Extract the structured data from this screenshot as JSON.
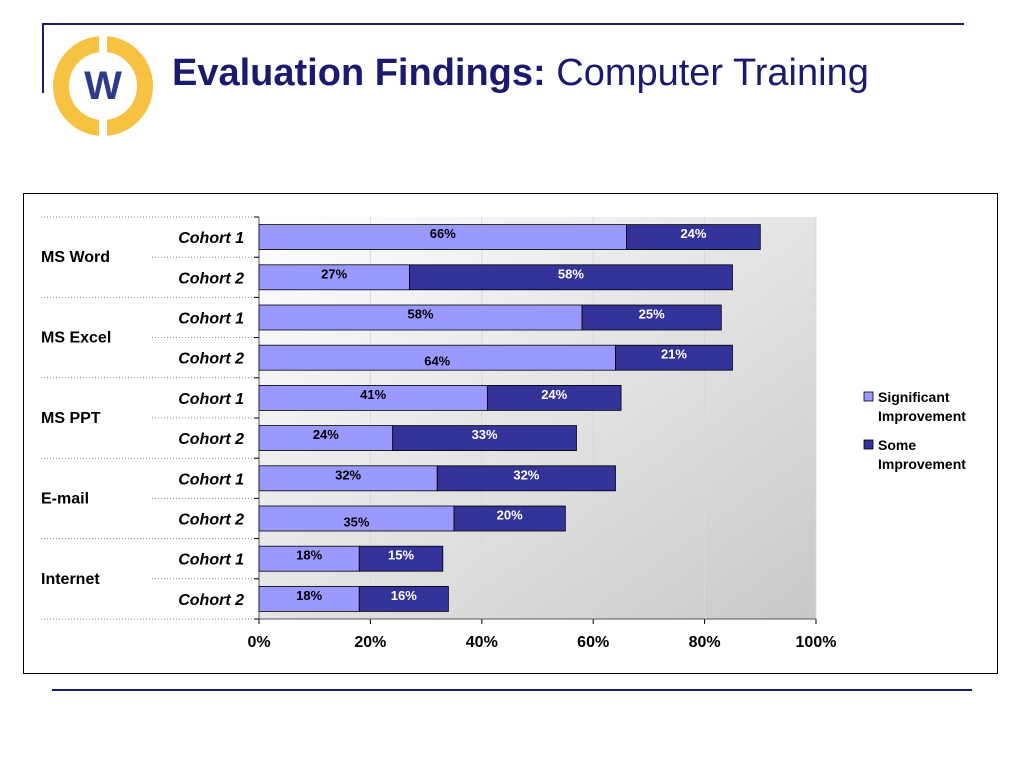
{
  "header": {
    "title_bold": "Evaluation Findings:",
    "title_rest": " Computer Training",
    "logo_letter": "W"
  },
  "colors": {
    "significant": "#9999ff",
    "some": "#333399",
    "title": "#1a1a6e",
    "logo_ring": "#f5c242",
    "logo_letter": "#2e3a8c"
  },
  "chart_data": {
    "type": "bar",
    "orientation": "horizontal",
    "stacked": true,
    "title": "",
    "xlabel": "",
    "ylabel": "",
    "xlim": [
      0,
      100
    ],
    "x_ticks": [
      "0%",
      "20%",
      "40%",
      "60%",
      "80%",
      "100%"
    ],
    "grid": true,
    "legend_position": "right",
    "groups": [
      {
        "label": "MS Word",
        "rows": [
          {
            "label": "Cohort 1",
            "significant": 66,
            "some": 24
          },
          {
            "label": "Cohort 2",
            "significant": 27,
            "some": 58
          }
        ]
      },
      {
        "label": "MS Excel",
        "rows": [
          {
            "label": "Cohort 1",
            "significant": 58,
            "some": 25
          },
          {
            "label": "Cohort 2",
            "significant": 64,
            "some": 21
          }
        ]
      },
      {
        "label": "MS PPT",
        "rows": [
          {
            "label": "Cohort 1",
            "significant": 41,
            "some": 24
          },
          {
            "label": "Cohort 2",
            "significant": 24,
            "some": 33
          }
        ]
      },
      {
        "label": "E-mail",
        "rows": [
          {
            "label": "Cohort 1",
            "significant": 32,
            "some": 32
          },
          {
            "label": "Cohort 2",
            "significant": 35,
            "some": 20
          }
        ]
      },
      {
        "label": "Internet",
        "rows": [
          {
            "label": "Cohort 1",
            "significant": 18,
            "some": 15
          },
          {
            "label": "Cohort 2",
            "significant": 18,
            "some": 16
          }
        ]
      }
    ],
    "series": [
      {
        "key": "significant",
        "name": "Significant Improvement",
        "legend_lines": [
          "Significant",
          "Improvement"
        ]
      },
      {
        "key": "some",
        "name": "Some Improvement",
        "legend_lines": [
          "Some",
          "Improvement"
        ]
      }
    ]
  }
}
